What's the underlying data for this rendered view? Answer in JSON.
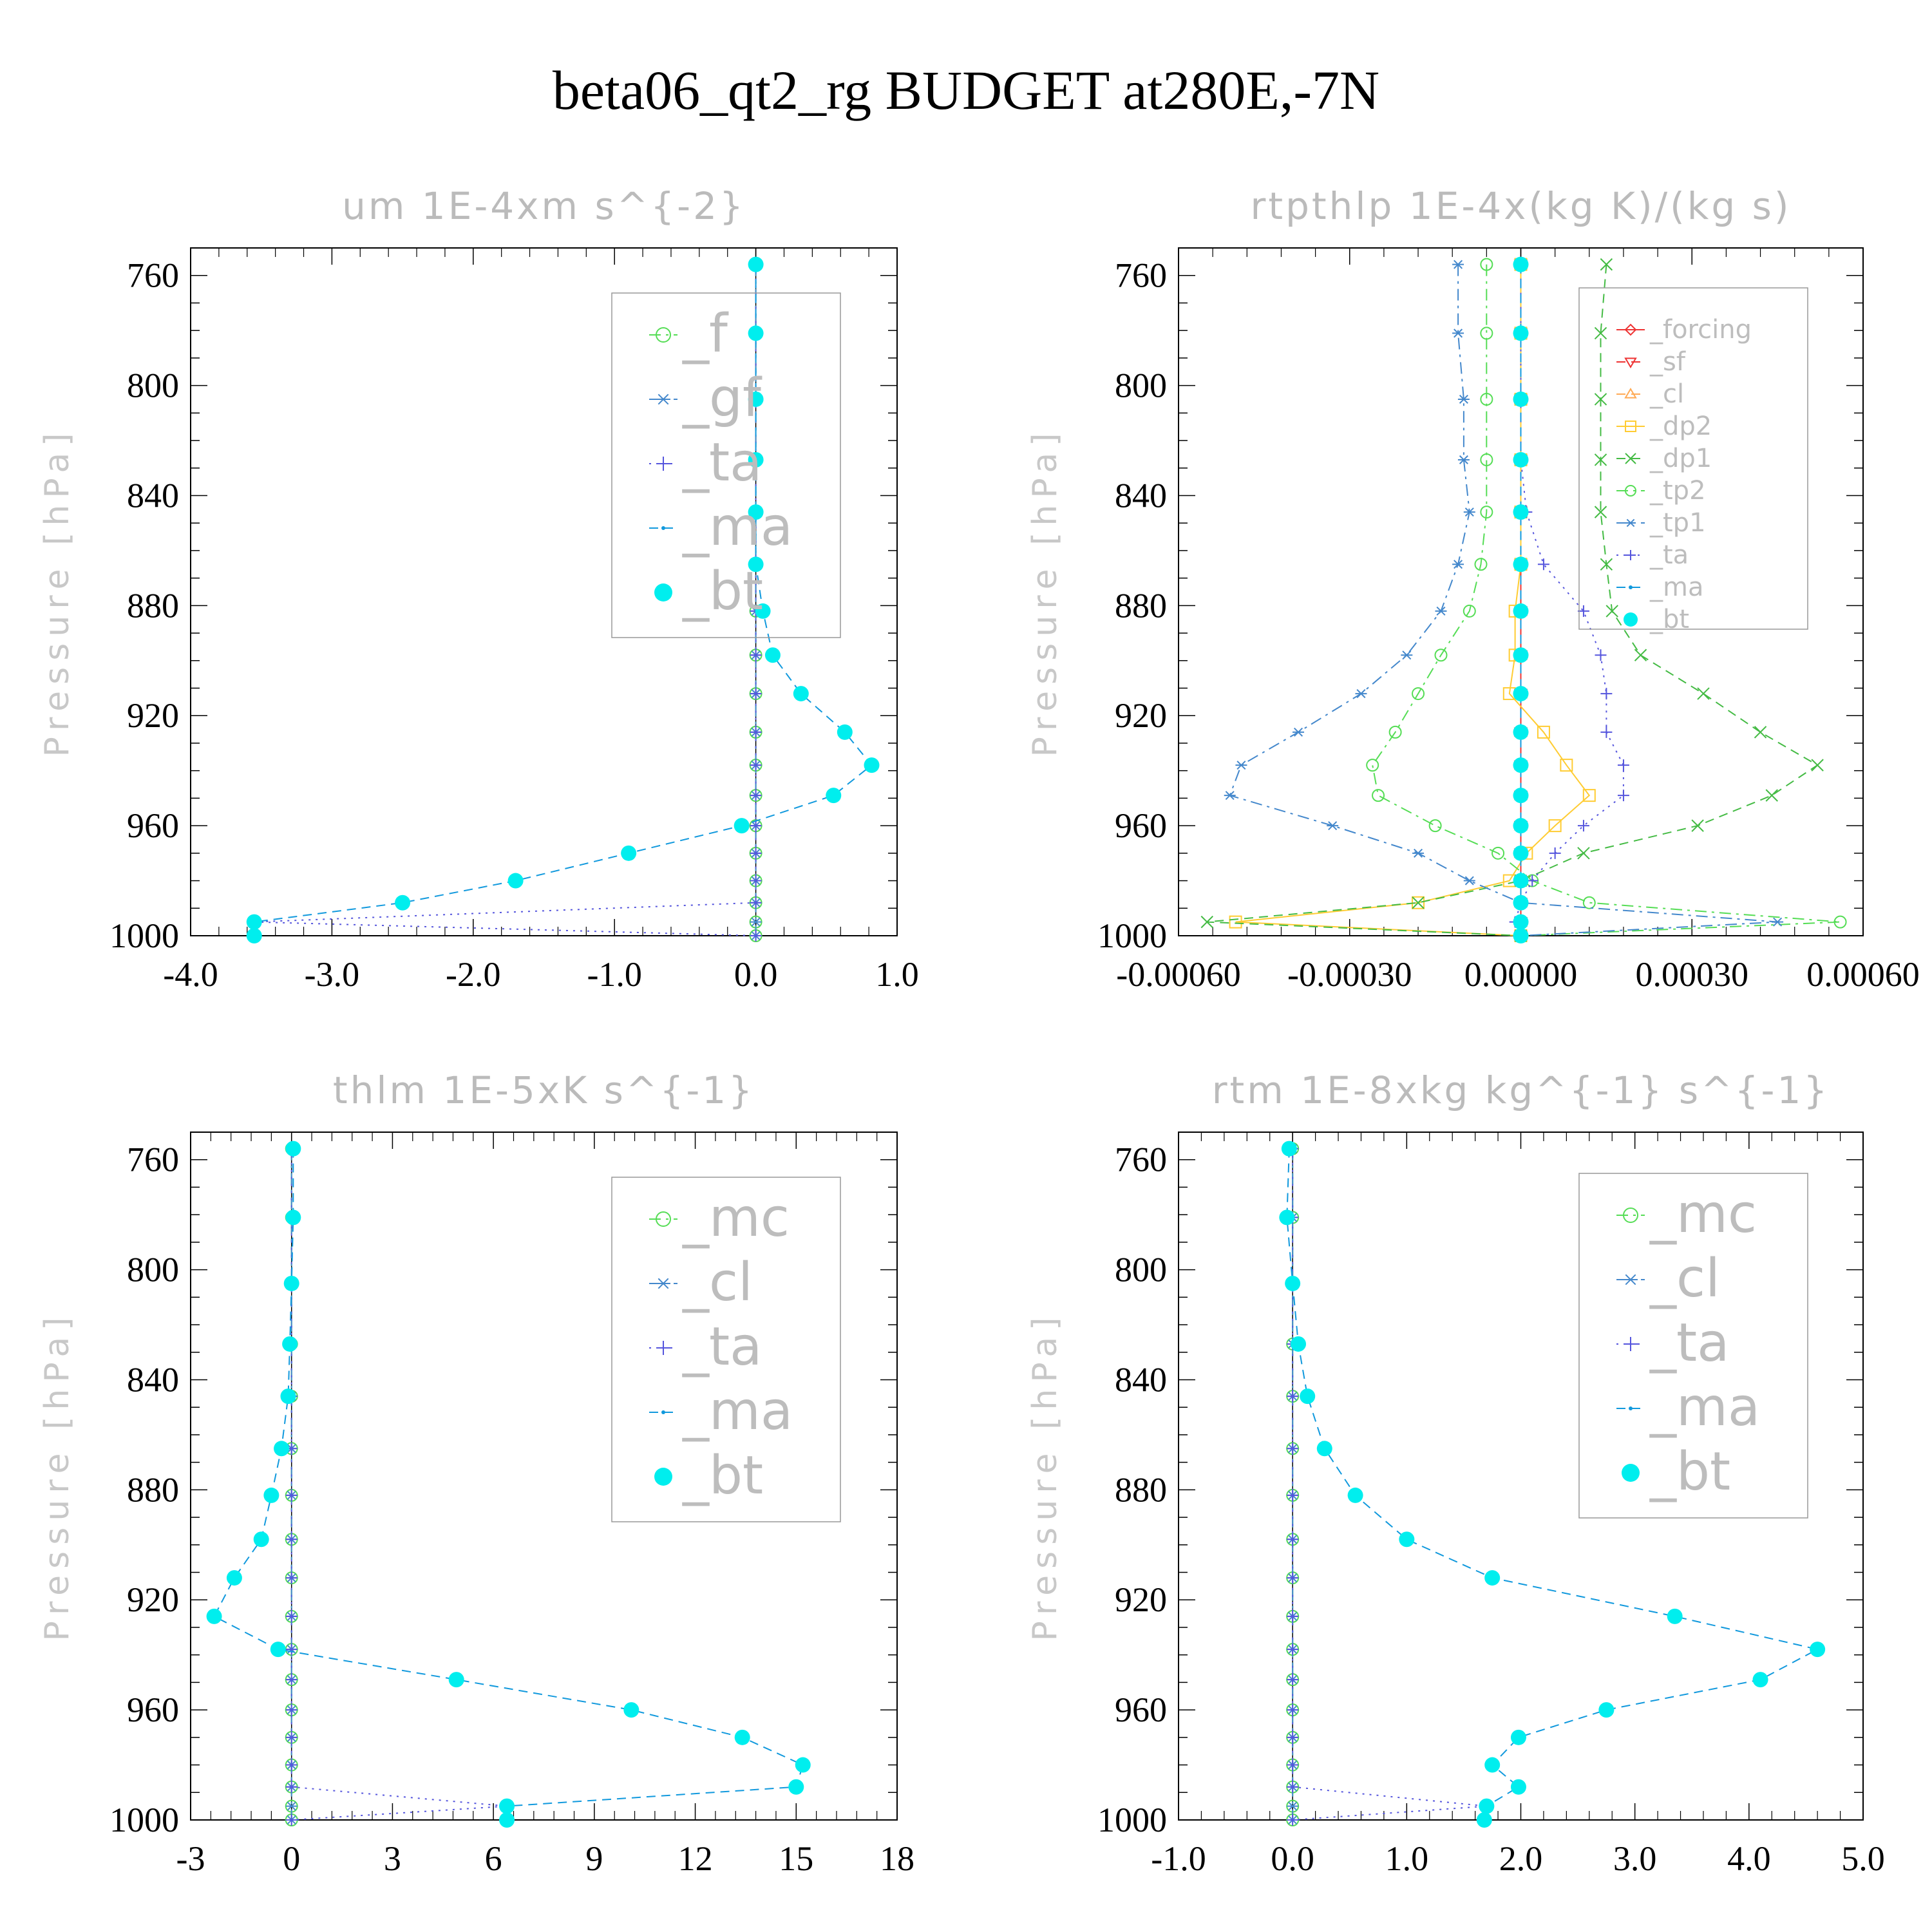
{
  "title": "beta06_qt2_rg  BUDGET at280E,-7N",
  "chart_data": [
    {
      "type": "line",
      "title": "um  1E-4xm s^{-2}",
      "ylabel": "Pressure [hPa]",
      "xlim": [
        -4.0,
        1.0
      ],
      "xticks": [
        -4.0,
        -3.0,
        -2.0,
        -1.0,
        0.0,
        1.0
      ],
      "xticklabels": [
        "-4.0",
        "-3.0",
        "-2.0",
        "-1.0",
        "0.0",
        "1.0"
      ],
      "ylim": [
        1000,
        750
      ],
      "yticks": [
        760,
        800,
        840,
        880,
        920,
        960,
        1000
      ],
      "yticklabels": [
        "760",
        "800",
        "840",
        "880",
        "920",
        "960",
        "1000"
      ],
      "legend": "top-right",
      "pressure": [
        756,
        781,
        805,
        827,
        846,
        865,
        882,
        898,
        912,
        926,
        938,
        949,
        960,
        970,
        980,
        988,
        995,
        1000
      ],
      "series": [
        {
          "name": "_f",
          "color": "#55dd55",
          "marker": "circle",
          "dash": "dashdot",
          "values": [
            0,
            0,
            0,
            0,
            0,
            0,
            0,
            0,
            0,
            0,
            0,
            0,
            0,
            0,
            0,
            0,
            0,
            0
          ]
        },
        {
          "name": "_gf",
          "color": "#4488cc",
          "marker": "star",
          "dash": "dashdot",
          "values": [
            0,
            0,
            0,
            0,
            0,
            0,
            0,
            0,
            0,
            0,
            0,
            0,
            0,
            0,
            0,
            0,
            0,
            0
          ]
        },
        {
          "name": "_ta",
          "color": "#5555dd",
          "marker": "plus",
          "dash": "dotted",
          "values": [
            0,
            0,
            0,
            0,
            0,
            0,
            0,
            0,
            0,
            0,
            0,
            0,
            0,
            0,
            0,
            0,
            -3.55,
            0
          ]
        },
        {
          "name": "_ma",
          "color": "#1199dd",
          "marker": "dot",
          "dash": "dashed",
          "values": [
            0,
            0,
            0,
            0,
            0,
            0,
            0.05,
            0.12,
            0.32,
            0.63,
            0.82,
            0.55,
            -0.1,
            -0.9,
            -1.7,
            -2.5,
            -3.55,
            -3.55
          ]
        },
        {
          "name": "_bt",
          "color": "#00eeee",
          "marker": "filled",
          "dash": "none",
          "values": [
            0,
            0,
            0,
            0,
            0,
            0,
            0.05,
            0.12,
            0.32,
            0.63,
            0.82,
            0.55,
            -0.1,
            -0.9,
            -1.7,
            -2.5,
            -3.55,
            -3.55
          ]
        }
      ]
    },
    {
      "type": "line",
      "title": "rtpthlp  1E-4x(kg K)/(kg s)",
      "ylabel": "Pressure [hPa]",
      "xlim": [
        -0.0006,
        0.0006
      ],
      "xticks": [
        -0.0006,
        -0.0003,
        0.0,
        0.0003,
        0.0006
      ],
      "xticklabels": [
        "-0.00060",
        "-0.00030",
        "0.00000",
        "0.00030",
        "0.00060"
      ],
      "ylim": [
        1000,
        750
      ],
      "yticks": [
        760,
        800,
        840,
        880,
        920,
        960,
        1000
      ],
      "yticklabels": [
        "760",
        "800",
        "840",
        "880",
        "920",
        "960",
        "1000"
      ],
      "legend": "top-right",
      "pressure": [
        756,
        781,
        805,
        827,
        846,
        865,
        882,
        898,
        912,
        926,
        938,
        949,
        960,
        970,
        980,
        988,
        995,
        1000
      ],
      "series": [
        {
          "name": "_forcing",
          "color": "#ee3333",
          "marker": "diamond",
          "dash": "solid",
          "values": [
            0,
            0,
            0,
            0,
            0,
            0,
            0,
            0,
            0,
            0,
            0,
            0,
            0,
            0,
            0,
            0,
            0,
            0
          ]
        },
        {
          "name": "_sf",
          "color": "#ee3333",
          "marker": "tridown",
          "dash": "dashed",
          "values": [
            0,
            0,
            0,
            0,
            0,
            0,
            0,
            0,
            0,
            0,
            0,
            0,
            0,
            0,
            0,
            0,
            0,
            0
          ]
        },
        {
          "name": "_cl",
          "color": "#ffaa55",
          "marker": "triup",
          "dash": "dashed",
          "values": [
            0,
            0,
            0,
            0,
            0,
            0,
            0,
            0,
            0,
            0,
            0,
            0,
            0,
            0,
            0,
            0,
            0,
            0
          ]
        },
        {
          "name": "_dp2",
          "color": "#ffcc33",
          "marker": "square",
          "dash": "solid",
          "values": [
            0,
            0,
            0,
            0,
            0,
            0,
            -1e-05,
            -1e-05,
            -2e-05,
            4e-05,
            8e-05,
            0.00012,
            6e-05,
            1e-05,
            -2e-05,
            -0.00018,
            -0.0005,
            0
          ]
        },
        {
          "name": "_dp1",
          "color": "#44bb44",
          "marker": "x",
          "dash": "dashed",
          "values": [
            0.00015,
            0.00014,
            0.00014,
            0.00014,
            0.00014,
            0.00015,
            0.00016,
            0.00021,
            0.00032,
            0.00042,
            0.00052,
            0.00044,
            0.00031,
            0.00011,
            0,
            -0.00018,
            -0.00055,
            0
          ]
        },
        {
          "name": "_tp2",
          "color": "#55dd55",
          "marker": "circle",
          "dash": "dashdot",
          "values": [
            -6e-05,
            -6e-05,
            -6e-05,
            -6e-05,
            -6e-05,
            -7e-05,
            -9e-05,
            -0.00014,
            -0.00018,
            -0.00022,
            -0.00026,
            -0.00025,
            -0.00015,
            -4e-05,
            2e-05,
            0.00012,
            0.00056,
            0
          ]
        },
        {
          "name": "_tp1",
          "color": "#4488cc",
          "marker": "star",
          "dash": "dashdot",
          "values": [
            -0.00011,
            -0.00011,
            -0.0001,
            -0.0001,
            -9e-05,
            -0.00011,
            -0.00014,
            -0.0002,
            -0.00028,
            -0.00039,
            -0.00049,
            -0.00051,
            -0.00033,
            -0.00018,
            -9e-05,
            0.0,
            0.00045,
            0
          ]
        },
        {
          "name": "_ta",
          "color": "#5555dd",
          "marker": "plus",
          "dash": "dotted",
          "values": [
            0,
            0,
            0,
            0,
            1e-05,
            4e-05,
            0.00011,
            0.00014,
            0.00015,
            0.00015,
            0.00018,
            0.00018,
            0.00011,
            6e-05,
            2e-05,
            0,
            -1e-05,
            0
          ]
        },
        {
          "name": "_ma",
          "color": "#1199dd",
          "marker": "dot",
          "dash": "dashed",
          "values": [
            0,
            0,
            0,
            0,
            0,
            0,
            0,
            0,
            0,
            0,
            0,
            0,
            0,
            0,
            0,
            0,
            0,
            0
          ]
        },
        {
          "name": "_bt",
          "color": "#00eeee",
          "marker": "filled",
          "dash": "none",
          "values": [
            0,
            0,
            0,
            0,
            0,
            0,
            0,
            0,
            0,
            0,
            0,
            0,
            0,
            0,
            0,
            0,
            0,
            0
          ]
        }
      ]
    },
    {
      "type": "line",
      "title": "thlm  1E-5xK s^{-1}",
      "ylabel": "Pressure [hPa]",
      "xlim": [
        -3,
        18
      ],
      "xticks": [
        -3,
        0,
        3,
        6,
        9,
        12,
        15,
        18
      ],
      "xticklabels": [
        "-3",
        "0",
        "3",
        "6",
        "9",
        "12",
        "15",
        "18"
      ],
      "ylim": [
        1000,
        750
      ],
      "yticks": [
        760,
        800,
        840,
        880,
        920,
        960,
        1000
      ],
      "yticklabels": [
        "760",
        "800",
        "840",
        "880",
        "920",
        "960",
        "1000"
      ],
      "legend": "top-right",
      "pressure": [
        756,
        781,
        805,
        827,
        846,
        865,
        882,
        898,
        912,
        926,
        938,
        949,
        960,
        970,
        980,
        988,
        995,
        1000
      ],
      "series": [
        {
          "name": "_mc",
          "color": "#55dd55",
          "marker": "circle",
          "dash": "dashdot",
          "values": [
            0,
            0,
            0,
            0,
            0,
            0,
            0,
            0,
            0,
            0,
            0,
            0,
            0,
            0,
            0,
            0,
            0,
            0
          ]
        },
        {
          "name": "_cl",
          "color": "#4488cc",
          "marker": "star",
          "dash": "dashdot",
          "values": [
            0,
            0,
            0,
            0,
            0,
            0,
            0,
            0,
            0,
            0,
            0,
            0,
            0,
            0,
            0,
            0,
            0,
            0
          ]
        },
        {
          "name": "_ta",
          "color": "#5555dd",
          "marker": "plus",
          "dash": "dotted",
          "values": [
            0,
            0,
            0,
            0,
            0,
            0,
            0,
            0,
            0,
            0,
            0,
            0,
            0,
            0,
            0,
            0,
            6.4,
            0
          ]
        },
        {
          "name": "_ma",
          "color": "#1199dd",
          "marker": "dot",
          "dash": "dashed",
          "values": [
            0.05,
            0.05,
            0.0,
            -0.05,
            -0.1,
            -0.3,
            -0.6,
            -0.9,
            -1.7,
            -2.3,
            -0.4,
            4.9,
            10.1,
            13.4,
            15.2,
            15.0,
            6.4,
            6.4
          ]
        },
        {
          "name": "_bt",
          "color": "#00eeee",
          "marker": "filled",
          "dash": "none",
          "values": [
            0.05,
            0.05,
            0.0,
            -0.05,
            -0.1,
            -0.3,
            -0.6,
            -0.9,
            -1.7,
            -2.3,
            -0.4,
            4.9,
            10.1,
            13.4,
            15.2,
            15.0,
            6.4,
            6.4
          ]
        }
      ]
    },
    {
      "type": "line",
      "title": "rtm  1E-8xkg kg^{-1} s^{-1}",
      "ylabel": "Pressure [hPa]",
      "xlim": [
        -1.0,
        5.0
      ],
      "xticks": [
        -1.0,
        0.0,
        1.0,
        2.0,
        3.0,
        4.0,
        5.0
      ],
      "xticklabels": [
        "-1.0",
        "0.0",
        "1.0",
        "2.0",
        "3.0",
        "4.0",
        "5.0"
      ],
      "ylim": [
        1000,
        750
      ],
      "yticks": [
        760,
        800,
        840,
        880,
        920,
        960,
        1000
      ],
      "yticklabels": [
        "760",
        "800",
        "840",
        "880",
        "920",
        "960",
        "1000"
      ],
      "legend": "top-right",
      "pressure": [
        756,
        781,
        805,
        827,
        846,
        865,
        882,
        898,
        912,
        926,
        938,
        949,
        960,
        970,
        980,
        988,
        995,
        1000
      ],
      "series": [
        {
          "name": "_mc",
          "color": "#55dd55",
          "marker": "circle",
          "dash": "dashdot",
          "values": [
            0,
            0,
            0,
            0,
            0,
            0,
            0,
            0,
            0,
            0,
            0,
            0,
            0,
            0,
            0,
            0,
            0,
            0
          ]
        },
        {
          "name": "_cl",
          "color": "#4488cc",
          "marker": "star",
          "dash": "dashdot",
          "values": [
            0,
            0,
            0,
            0,
            0,
            0,
            0,
            0,
            0,
            0,
            0,
            0,
            0,
            0,
            0,
            0,
            0,
            0
          ]
        },
        {
          "name": "_ta",
          "color": "#5555dd",
          "marker": "plus",
          "dash": "dotted",
          "values": [
            0,
            0,
            0,
            0,
            0,
            0,
            0,
            0,
            0,
            0,
            0,
            0,
            0,
            0,
            0,
            0,
            1.7,
            0
          ]
        },
        {
          "name": "_ma",
          "color": "#1199dd",
          "marker": "dot",
          "dash": "dashed",
          "values": [
            -0.03,
            -0.05,
            0.0,
            0.05,
            0.13,
            0.28,
            0.55,
            1.0,
            1.75,
            3.35,
            4.6,
            4.1,
            2.75,
            1.98,
            1.75,
            1.98,
            1.7,
            1.68
          ]
        },
        {
          "name": "_bt",
          "color": "#00eeee",
          "marker": "filled",
          "dash": "none",
          "values": [
            -0.03,
            -0.05,
            0.0,
            0.05,
            0.13,
            0.28,
            0.55,
            1.0,
            1.75,
            3.35,
            4.6,
            4.1,
            2.75,
            1.98,
            1.75,
            1.98,
            1.7,
            1.68
          ]
        }
      ]
    }
  ]
}
